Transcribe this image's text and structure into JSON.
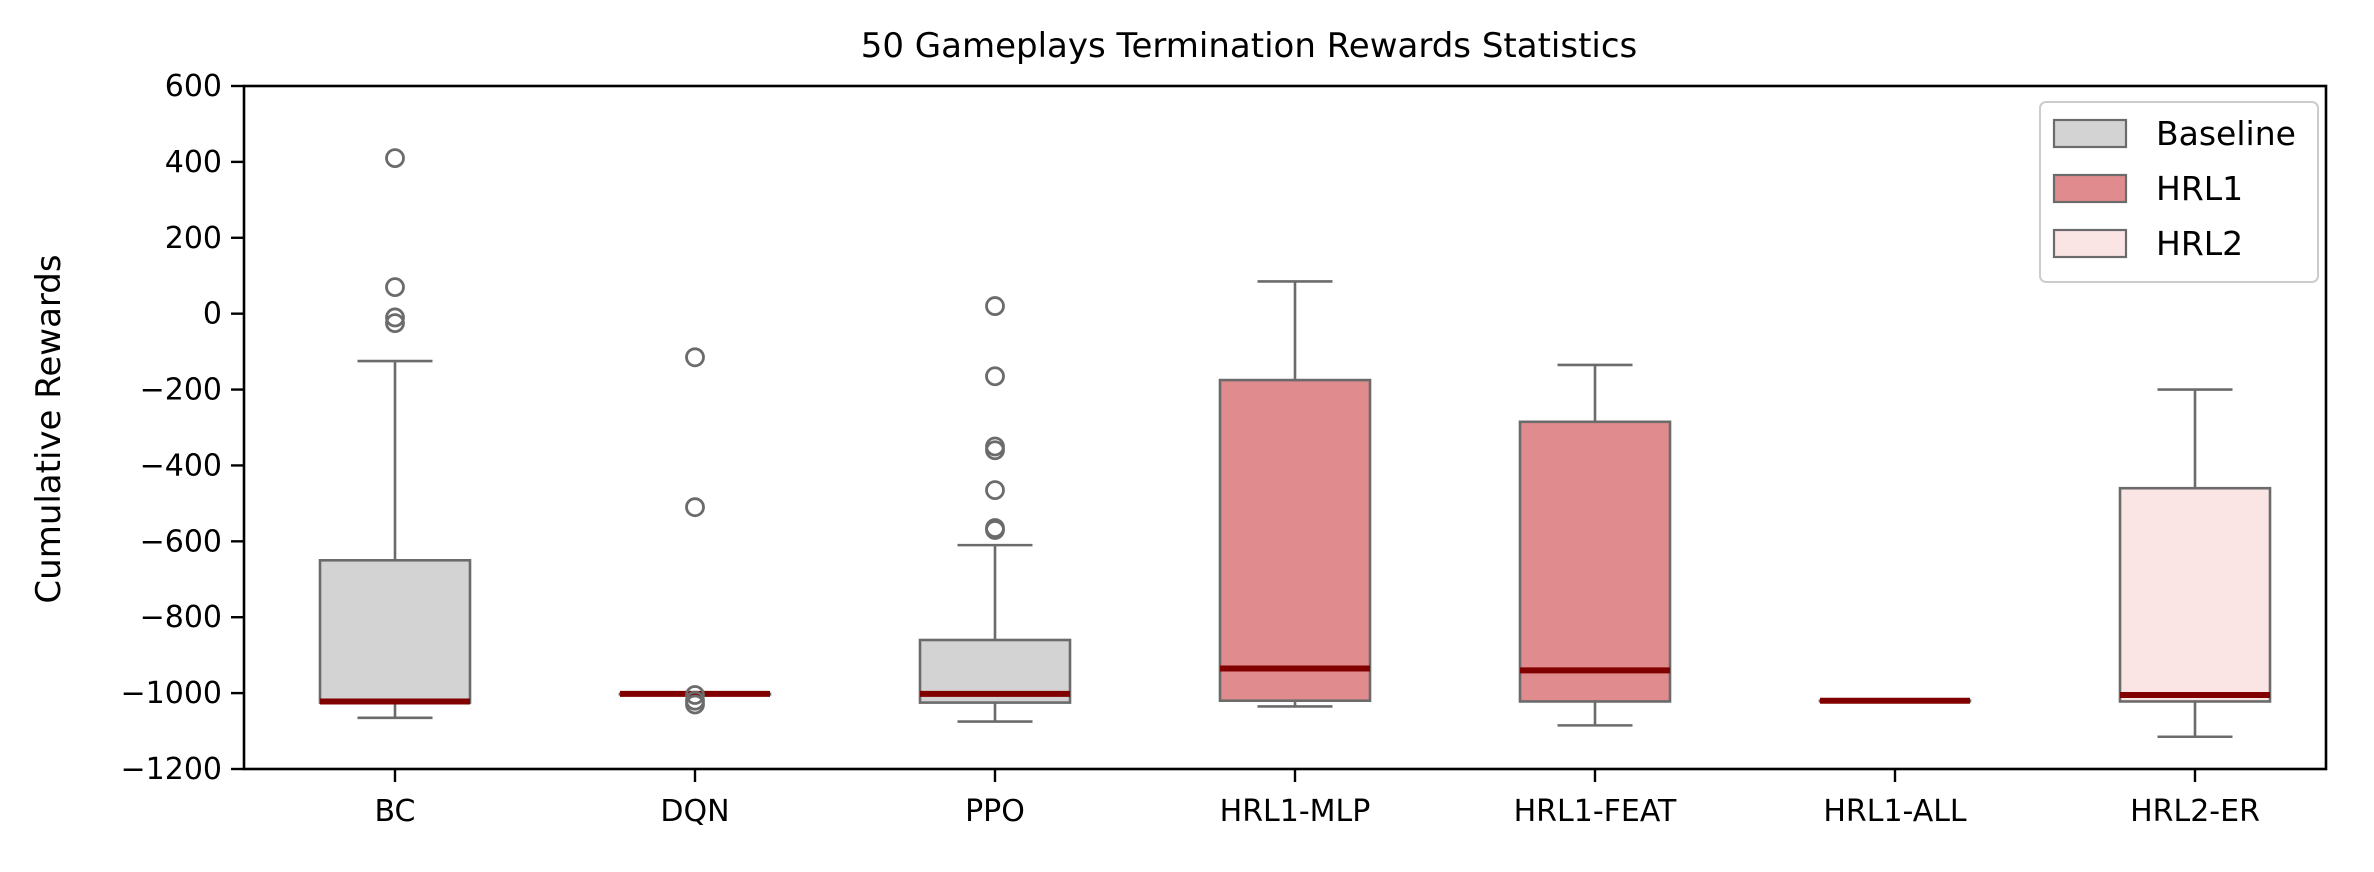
{
  "chart_data": {
    "type": "box",
    "title": "50 Gameplays Termination Rewards Statistics",
    "xlabel": "",
    "ylabel": "Cumulative Rewards",
    "ylim": [
      -1200,
      600
    ],
    "yticks": [
      600,
      400,
      200,
      0,
      -200,
      -400,
      -600,
      -800,
      -1000,
      -1200
    ],
    "ytick_labels": [
      "600",
      "400",
      "200",
      "0",
      "−200",
      "−400",
      "−600",
      "−800",
      "−1000",
      "−1200"
    ],
    "categories": [
      "BC",
      "DQN",
      "PPO",
      "HRL1-MLP",
      "HRL1-FEAT",
      "HRL1-ALL",
      "HRL2-ER"
    ],
    "legend": {
      "placement": "top-right",
      "entries": [
        {
          "name": "Baseline",
          "color": "#d3d3d3"
        },
        {
          "name": "HRL1",
          "color": "#e08b8e"
        },
        {
          "name": "HRL2",
          "color": "#fae5e4"
        }
      ]
    },
    "colors": {
      "box_edge": "#6b6b6b",
      "median": "#800000",
      "outlier_edge": "#6b6b6b"
    },
    "boxes": [
      {
        "category": "BC",
        "group": "Baseline",
        "whisker_low": -1065,
        "q1": -1025,
        "median": -1022,
        "q3": -650,
        "whisker_high": -125,
        "outliers": [
          410,
          70,
          -10,
          -25
        ]
      },
      {
        "category": "DQN",
        "group": "Baseline",
        "whisker_low": -1002,
        "q1": -1002,
        "median": -1002,
        "q3": -1002,
        "whisker_high": -1002,
        "outliers": [
          -115,
          -510,
          -1005,
          -1020,
          -1030
        ]
      },
      {
        "category": "PPO",
        "group": "Baseline",
        "whisker_low": -1075,
        "q1": -1025,
        "median": -1002,
        "q3": -860,
        "whisker_high": -610,
        "outliers": [
          20,
          -165,
          -350,
          -360,
          -465,
          -565,
          -570
        ]
      },
      {
        "category": "HRL1-MLP",
        "group": "HRL1",
        "whisker_low": -1035,
        "q1": -1020,
        "median": -935,
        "q3": -175,
        "whisker_high": 85,
        "outliers": []
      },
      {
        "category": "HRL1-FEAT",
        "group": "HRL1",
        "whisker_low": -1085,
        "q1": -1022,
        "median": -940,
        "q3": -285,
        "whisker_high": -135,
        "outliers": []
      },
      {
        "category": "HRL1-ALL",
        "group": "HRL1",
        "whisker_low": -1020,
        "q1": -1020,
        "median": -1020,
        "q3": -1020,
        "whisker_high": -1020,
        "outliers": []
      },
      {
        "category": "HRL2-ER",
        "group": "HRL2",
        "whisker_low": -1115,
        "q1": -1022,
        "median": -1005,
        "q3": -460,
        "whisker_high": -200,
        "outliers": []
      }
    ]
  }
}
